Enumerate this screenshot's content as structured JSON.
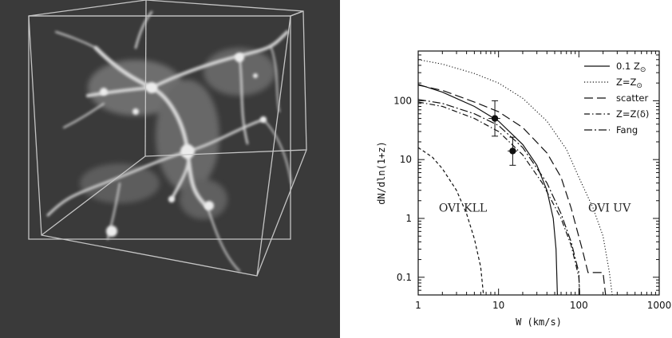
{
  "figure": {
    "left_panel": {
      "kind": "image",
      "description_icon": "simulation-cube-image",
      "colors": {
        "background": "#3a3a3a",
        "filament": "#d6d6d6",
        "box": "#bdbdbd"
      }
    }
  },
  "chart_data": {
    "type": "line",
    "title": "",
    "xlabel": "W (km/s)",
    "ylabel": "dN/dln(1+z)",
    "xscale": "log",
    "yscale": "log",
    "xlim": [
      1,
      1000
    ],
    "ylim": [
      0.05,
      700
    ],
    "x_ticks": [
      {
        "value": 1,
        "label": "1"
      },
      {
        "value": 10,
        "label": "10"
      },
      {
        "value": 100,
        "label": "100"
      },
      {
        "value": 1000,
        "label": "1000"
      }
    ],
    "y_ticks": [
      {
        "value": 0.1,
        "label": "0.1"
      },
      {
        "value": 1,
        "label": "1"
      },
      {
        "value": 10,
        "label": "10"
      },
      {
        "value": 100,
        "label": "100"
      }
    ],
    "legend_position": "top-right",
    "series": [
      {
        "name": "0.1 Z",
        "name_sub": "⊙",
        "style": "solid",
        "points": [
          [
            1,
            190
          ],
          [
            2,
            140
          ],
          [
            5,
            80
          ],
          [
            10,
            45
          ],
          [
            20,
            18
          ],
          [
            30,
            8
          ],
          [
            40,
            3
          ],
          [
            48,
            1
          ],
          [
            52,
            0.3
          ],
          [
            54,
            0.05
          ]
        ]
      },
      {
        "name": "Z=Z",
        "name_sub": "⊙",
        "style": "dotted",
        "points": [
          [
            1,
            500
          ],
          [
            2,
            420
          ],
          [
            5,
            290
          ],
          [
            10,
            200
          ],
          [
            20,
            110
          ],
          [
            40,
            45
          ],
          [
            70,
            15
          ],
          [
            100,
            5
          ],
          [
            150,
            1.5
          ],
          [
            200,
            0.5
          ],
          [
            240,
            0.12
          ],
          [
            260,
            0.05
          ]
        ]
      },
      {
        "name": "scatter",
        "name_sub": "",
        "style": "longdash",
        "points": [
          [
            1,
            185
          ],
          [
            2,
            150
          ],
          [
            5,
            95
          ],
          [
            10,
            65
          ],
          [
            20,
            35
          ],
          [
            40,
            13
          ],
          [
            60,
            5
          ],
          [
            80,
            1.5
          ],
          [
            110,
            0.3
          ],
          [
            130,
            0.12
          ],
          [
            200,
            0.12
          ],
          [
            215,
            0.05
          ]
        ]
      },
      {
        "name": "Z=Z(δ)",
        "name_sub": "",
        "style": "dashdot",
        "points": [
          [
            1,
            95
          ],
          [
            2,
            80
          ],
          [
            5,
            50
          ],
          [
            10,
            30
          ],
          [
            20,
            12
          ],
          [
            35,
            4
          ],
          [
            60,
            1
          ],
          [
            80,
            0.35
          ],
          [
            100,
            0.1
          ],
          [
            102,
            0.05
          ]
        ]
      },
      {
        "name": "Fang",
        "name_sub": "",
        "style": "dashdotdash",
        "points": [
          [
            1,
            105
          ],
          [
            2,
            90
          ],
          [
            5,
            60
          ],
          [
            10,
            38
          ],
          [
            20,
            16
          ],
          [
            40,
            4
          ],
          [
            60,
            1.2
          ],
          [
            80,
            0.4
          ],
          [
            100,
            0.12
          ],
          [
            102,
            0.05
          ]
        ]
      },
      {
        "name": "",
        "name_sub": "",
        "style": "shortdash",
        "points": [
          [
            1,
            16
          ],
          [
            1.5,
            11
          ],
          [
            2,
            7
          ],
          [
            3,
            3
          ],
          [
            4,
            1.2
          ],
          [
            5,
            0.45
          ],
          [
            6,
            0.15
          ],
          [
            6.5,
            0.05
          ]
        ]
      }
    ],
    "observations": [
      {
        "x": 9,
        "y": 50,
        "ylow": 25,
        "yhigh": 100,
        "xlow": 7.5,
        "xhigh": 10.5
      },
      {
        "x": 15,
        "y": 14,
        "ylow": 8,
        "yhigh": 24,
        "xlow": 13,
        "xhigh": 17
      }
    ],
    "annotations": [
      {
        "text": "OVI KLL",
        "x": 3.6,
        "y": 1.3
      },
      {
        "text": "OVI UV",
        "x": 240,
        "y": 1.3
      }
    ]
  }
}
